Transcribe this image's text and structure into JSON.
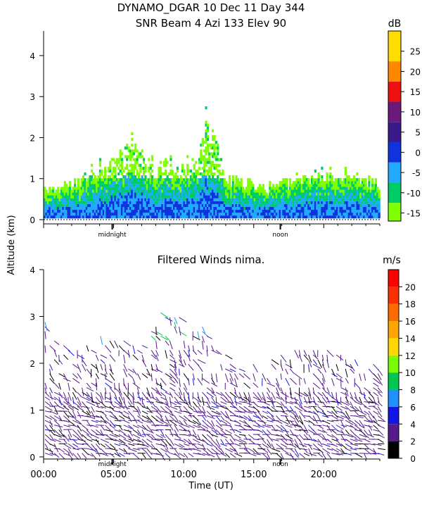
{
  "title_line1": "DYNAMO_DGAR  10 Dec 11 Day 344",
  "shared_ylabel": "Altitude (km)",
  "xlabel": "Time (UT)",
  "x_ticks": [
    "00:00",
    "05:00",
    "10:00",
    "15:00",
    "20:00"
  ],
  "chart_data": [
    {
      "type": "heatmap",
      "title": "SNR Beam 4 Azi 133 Elev 90",
      "ylabel": "Altitude (km)",
      "ylim": [
        0,
        4.6
      ],
      "y_ticks": [
        "0",
        "1",
        "2",
        "3",
        "4"
      ],
      "xlim_hours": [
        0,
        24
      ],
      "markers": [
        {
          "label": "midnight",
          "hour": 4.9
        },
        {
          "label": "noon",
          "hour": 16.9
        }
      ],
      "colorbar": {
        "unit": "dB",
        "ticks": [
          "-15",
          "-10",
          "-5",
          "0",
          "5",
          "10",
          "15",
          "20",
          "25"
        ],
        "range": [
          -17,
          30
        ],
        "colors": [
          "#7fff00",
          "#00cc66",
          "#22aaff",
          "#1133dd",
          "#3a1a8a",
          "#6a1a7a",
          "#ee1111",
          "#ff8800",
          "#ffdd00"
        ]
      },
      "echo_top_km_by_hour": [
        {
          "hour": 0,
          "top": 0.8
        },
        {
          "hour": 2,
          "top": 0.9
        },
        {
          "hour": 3.5,
          "top": 1.2
        },
        {
          "hour": 5.5,
          "top": 1.6
        },
        {
          "hour": 6,
          "top": 2.1
        },
        {
          "hour": 8,
          "top": 1.2
        },
        {
          "hour": 9,
          "top": 1.5
        },
        {
          "hour": 11,
          "top": 1.3
        },
        {
          "hour": 11.5,
          "top": 2.6
        },
        {
          "hour": 13,
          "top": 1.0
        },
        {
          "hour": 16,
          "top": 0.8
        },
        {
          "hour": 20.5,
          "top": 1.2
        },
        {
          "hour": 24,
          "top": 0.9
        }
      ]
    },
    {
      "type": "scatter",
      "title": "Filtered Winds nima.",
      "ylabel": "Altitude (km)",
      "ylim": [
        0,
        4
      ],
      "y_ticks": [
        "0",
        "1",
        "2",
        "3",
        "4"
      ],
      "xlim_hours": [
        0,
        24
      ],
      "markers": [
        {
          "label": "midnight",
          "hour": 4.9
        },
        {
          "label": "noon",
          "hour": 16.9
        }
      ],
      "colorbar": {
        "unit": "m/s",
        "ticks": [
          "0",
          "2",
          "4",
          "6",
          "8",
          "10",
          "12",
          "14",
          "16",
          "18",
          "20"
        ],
        "range": [
          0,
          22
        ],
        "colors": [
          "#000000",
          "#551a8b",
          "#1414e6",
          "#1e90ff",
          "#00c850",
          "#7cfc00",
          "#ffd700",
          "#ffa500",
          "#ff6a00",
          "#ff3000",
          "#ff0000"
        ]
      },
      "wind_top_km_by_hour": [
        {
          "hour": 0,
          "top": 3.0
        },
        {
          "hour": 2,
          "top": 2.2
        },
        {
          "hour": 4,
          "top": 2.6
        },
        {
          "hour": 7,
          "top": 2.4
        },
        {
          "hour": 8.5,
          "top": 3.2
        },
        {
          "hour": 11,
          "top": 2.9
        },
        {
          "hour": 13,
          "top": 2.2
        },
        {
          "hour": 15,
          "top": 2.0
        },
        {
          "hour": 18,
          "top": 2.3
        },
        {
          "hour": 20,
          "top": 2.4
        },
        {
          "hour": 22,
          "top": 2.1
        },
        {
          "hour": 24,
          "top": 2.0
        }
      ],
      "typical_speed_ms": 3
    }
  ]
}
